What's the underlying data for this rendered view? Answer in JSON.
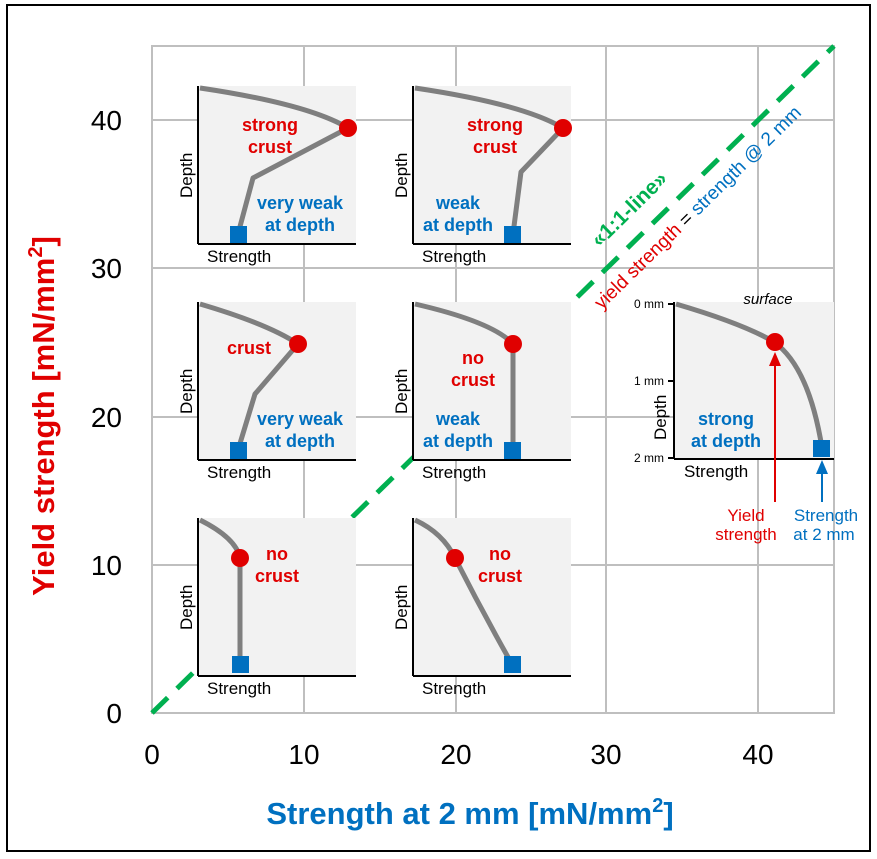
{
  "chart_data": {
    "type": "scatter",
    "xlabel": "Strength at 2 mm [mN/mm",
    "xlabel_sup": "2",
    "xlabel_close": "]",
    "ylabel": "Yield strength [mN/mm",
    "ylabel_sup": "2",
    "ylabel_close": "]",
    "xlim": [
      0,
      45
    ],
    "ylim": [
      0,
      45
    ],
    "x_ticks": [
      "0",
      "10",
      "20",
      "30",
      "40"
    ],
    "y_ticks": [
      "0",
      "10",
      "20",
      "30",
      "40"
    ],
    "grid": true,
    "reference_line": {
      "label": "«1:1-line»",
      "caption_red": "yield strength",
      "caption_eq": " = ",
      "caption_blue": "strength @ 2 mm",
      "x": [
        0,
        45
      ],
      "y": [
        0,
        45
      ]
    }
  },
  "insets": [
    {
      "id": "strong-crust-very-weak",
      "top": [
        "strong",
        "crust"
      ],
      "bottom": [
        "very weak",
        "at depth"
      ],
      "xlabel": "Strength",
      "ylabel": "Depth"
    },
    {
      "id": "strong-crust-weak",
      "top": [
        "strong",
        "crust"
      ],
      "bottom": [
        "weak",
        "at depth"
      ],
      "xlabel": "Strength",
      "ylabel": "Depth"
    },
    {
      "id": "crust-very-weak",
      "top": [
        "crust"
      ],
      "bottom": [
        "very weak",
        "at depth"
      ],
      "xlabel": "Strength",
      "ylabel": "Depth"
    },
    {
      "id": "no-crust-weak",
      "top": [
        "no",
        "crust"
      ],
      "bottom": [
        "weak",
        "at depth"
      ],
      "xlabel": "Strength",
      "ylabel": "Depth"
    },
    {
      "id": "no-crust-low",
      "top": [
        "no",
        "crust"
      ],
      "bottom": [],
      "xlabel": "Strength",
      "ylabel": "Depth"
    },
    {
      "id": "no-crust-mid",
      "top": [
        "no",
        "crust"
      ],
      "bottom": [],
      "xlabel": "Strength",
      "ylabel": "Depth"
    }
  ],
  "explainer": {
    "surface": "surface",
    "depth_ticks": [
      "0 mm",
      "1 mm",
      "2 mm"
    ],
    "bottom": [
      "strong",
      "at depth"
    ],
    "xlabel": "Strength",
    "ylabel": "Depth",
    "yield_label": [
      "Yield",
      "strength"
    ],
    "strength_label": [
      "Strength",
      "at 2 mm"
    ]
  },
  "colors": {
    "yield": "#e00000",
    "strength": "#0070c0",
    "one_to_one": "#00b050",
    "profile": "#7f7f7f",
    "inset_bg": "#f2f2f2",
    "grid": "#bfbfbf"
  }
}
